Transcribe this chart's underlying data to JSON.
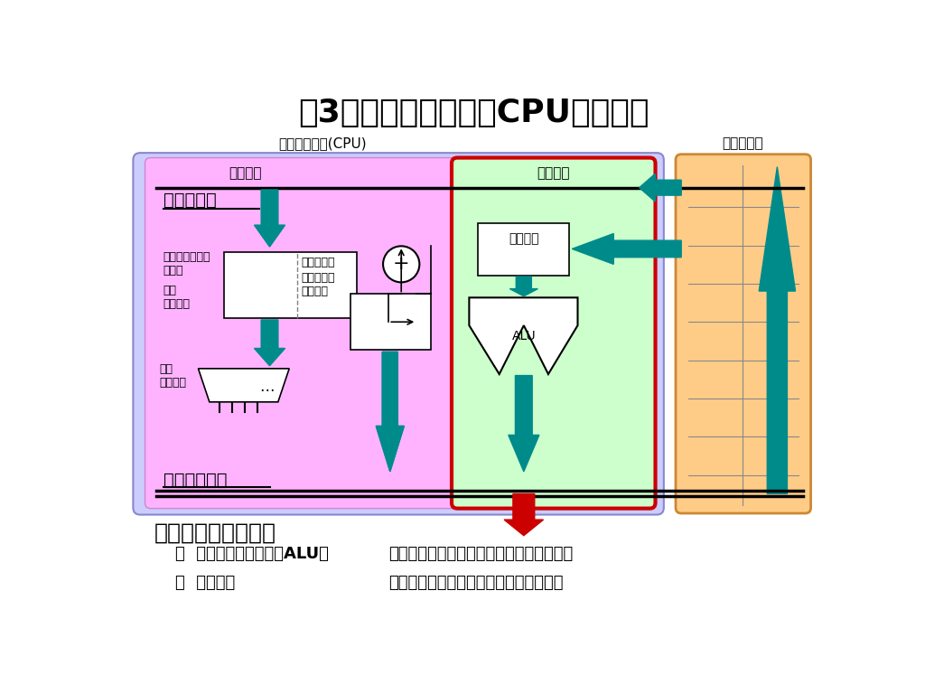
{
  "title": "（3）中央処理装置（CPU）の構成",
  "title_fontsize": 26,
  "bg_color": "#ffffff",
  "cpu_label": "中央処理装置(CPU)",
  "memory_label": "主記憶装置",
  "control_label": "制御装置",
  "alu_section_label": "演算装置",
  "data_bus_label": "データバス",
  "addr_bus_label": "アドレスバス",
  "register_label": "レジスタ",
  "alu_label": "ALU",
  "op_code_label": "オペレーション\nコード",
  "operand_label": "オペランド",
  "cmd_reg_label": "命令\nレジスタ",
  "cmd_dec_label": "命令\nデコーダ",
  "prog_counter_label": "プログラム\nカウンタ",
  "plus_label": "+",
  "ellipsis_label": "…",
  "bottom_title": "演算装置各部の役割",
  "bullet1_key": "－  算術論理演算装置（ALU）",
  "bullet1_val": "四則演算・論理演算・比較演算などを行う",
  "bullet2_key": "－  レジスタ",
  "bullet2_val": "演算などに必要なデータを一時格納する",
  "teal": "#008B8B",
  "red_arrow": "#CC0000",
  "pink_bg": "#FFB3FF",
  "blue_bg": "#CCCCFF",
  "green_bg": "#CCFFCC",
  "orange_bg": "#FFCC88",
  "mem_border": "#CC8833"
}
